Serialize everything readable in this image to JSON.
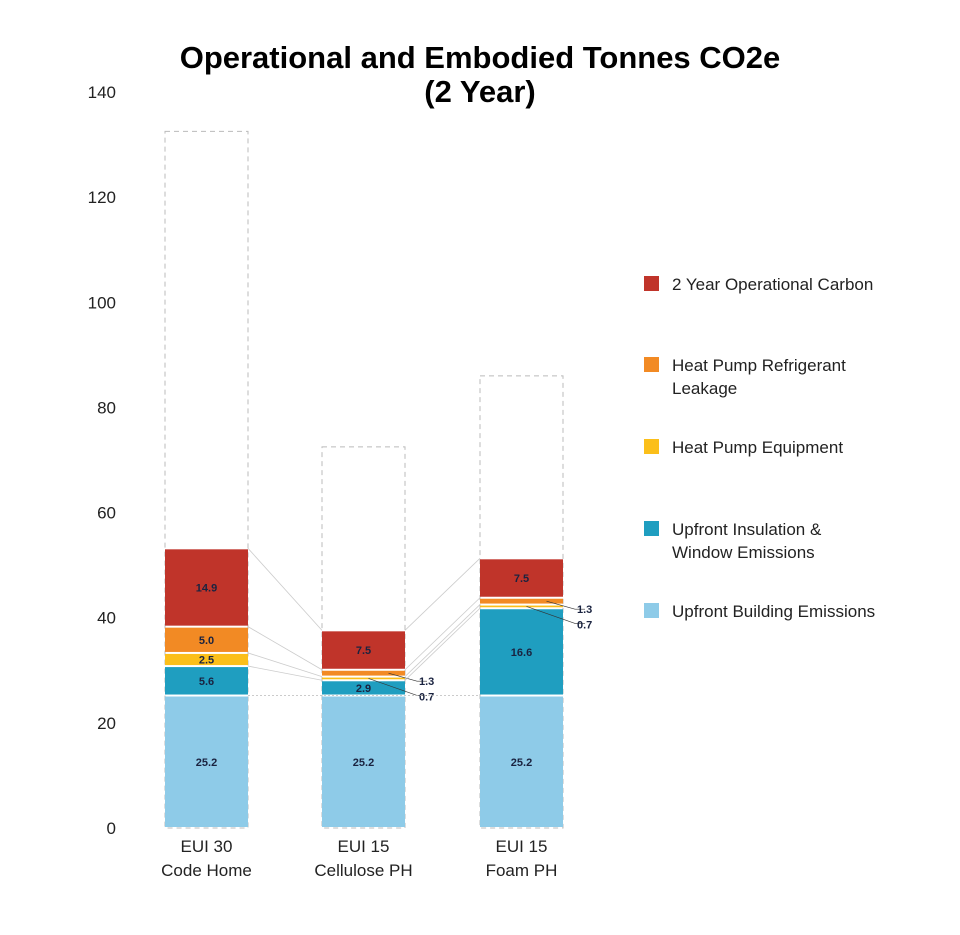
{
  "chart_data": {
    "type": "bar",
    "stacked": true,
    "title": [
      "Operational and Embodied Tonnes CO2e",
      "(2 Year)"
    ],
    "xlabel": "",
    "ylabel": "",
    "ylim": [
      0,
      140
    ],
    "yticks": [
      0,
      20,
      40,
      60,
      80,
      100,
      120,
      140
    ],
    "grid": false,
    "legend_position": "right",
    "categories": [
      [
        "EUI 30",
        "Code Home"
      ],
      [
        "EUI 15",
        "Cellulose PH"
      ],
      [
        "EUI 15",
        "Foam PH"
      ]
    ],
    "series": [
      {
        "name": "Upfront Building Emissions",
        "color": "#8ecbe8",
        "values": [
          25.2,
          25.2,
          25.2
        ]
      },
      {
        "name": "Upfront Insulation & Window Emissions",
        "color": "#1f9ec0",
        "values": [
          5.6,
          2.9,
          16.6
        ]
      },
      {
        "name": "Heat Pump Equipment",
        "color": "#fbbf1a",
        "values": [
          2.5,
          0.7,
          0.7
        ]
      },
      {
        "name": "Heat Pump Refrigerant Leakage",
        "color": "#f28a24",
        "values": [
          5.0,
          1.3,
          1.3
        ]
      },
      {
        "name": "2 Year Operational Carbon",
        "color": "#c0342a",
        "values": [
          14.9,
          7.5,
          7.5
        ]
      }
    ],
    "dashed_outline_totals": [
      132.5,
      72.5,
      86
    ],
    "legend": [
      {
        "lines": [
          "2 Year Operational Carbon"
        ],
        "color": "#c0342a"
      },
      {
        "lines": [
          "Heat Pump Refrigerant",
          "Leakage"
        ],
        "color": "#f28a24"
      },
      {
        "lines": [
          "Heat Pump Equipment"
        ],
        "color": "#fbbf1a"
      },
      {
        "lines": [
          "Upfront Insulation &",
          "Window Emissions"
        ],
        "color": "#1f9ec0"
      },
      {
        "lines": [
          "Upfront Building Emissions"
        ],
        "color": "#8ecbe8"
      }
    ]
  }
}
